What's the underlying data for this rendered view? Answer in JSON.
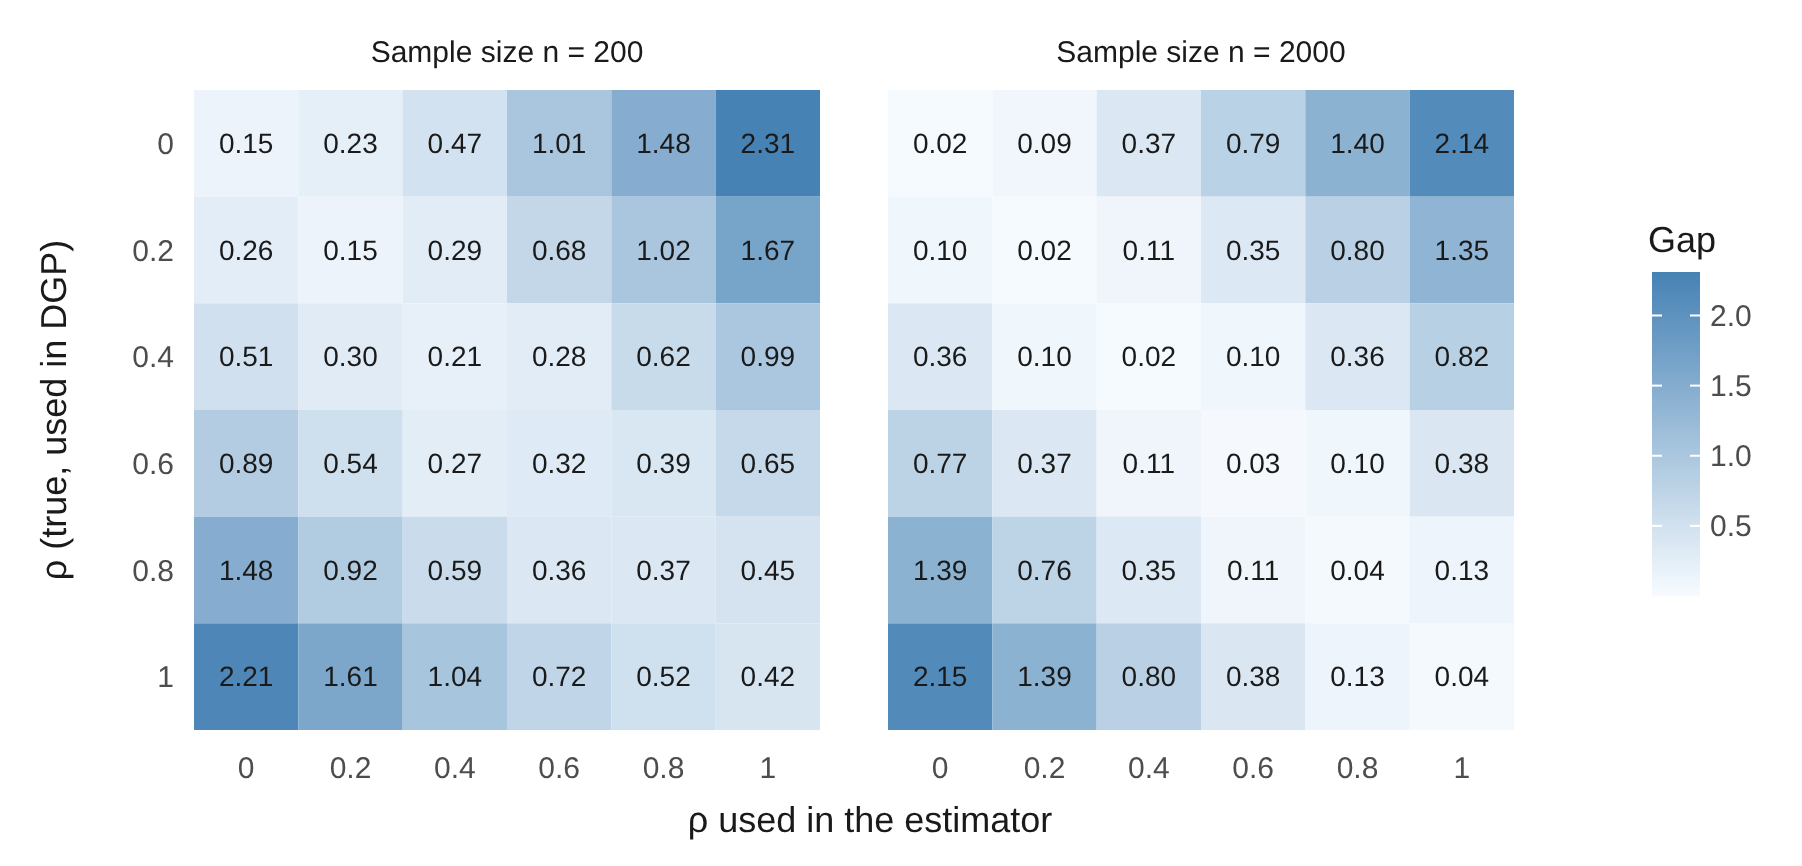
{
  "chart_data": [
    {
      "type": "heatmap",
      "title": "Sample size n = 200",
      "xlabel": "ρ  used in the estimator",
      "ylabel": "ρ  (true, used in DGP)",
      "clabel": "Gap",
      "categories": [
        "0",
        "0.2",
        "0.4",
        "0.6",
        "0.8",
        "1"
      ],
      "y_categories": [
        "0",
        "0.2",
        "0.4",
        "0.6",
        "0.8",
        "1"
      ],
      "cells": [
        [
          0.15,
          0.23,
          0.47,
          1.01,
          1.48,
          2.31
        ],
        [
          0.26,
          0.15,
          0.29,
          0.68,
          1.02,
          1.67
        ],
        [
          0.51,
          0.3,
          0.21,
          0.28,
          0.62,
          0.99
        ],
        [
          0.89,
          0.54,
          0.27,
          0.32,
          0.39,
          0.65
        ],
        [
          1.48,
          0.92,
          0.59,
          0.36,
          0.37,
          0.45
        ],
        [
          2.21,
          1.61,
          1.04,
          0.72,
          0.52,
          0.42
        ]
      ],
      "cell_labels": [
        [
          "0.15",
          "0.23",
          "0.47",
          "1.01",
          "1.48",
          "2.31"
        ],
        [
          "0.26",
          "0.15",
          "0.29",
          "0.68",
          "1.02",
          "1.67"
        ],
        [
          "0.51",
          "0.30",
          "0.21",
          "0.28",
          "0.62",
          "0.99"
        ],
        [
          "0.89",
          "0.54",
          "0.27",
          "0.32",
          "0.39",
          "0.65"
        ],
        [
          "1.48",
          "0.92",
          "0.59",
          "0.36",
          "0.37",
          "0.45"
        ],
        [
          "2.21",
          "1.61",
          "1.04",
          "0.72",
          "0.52",
          "0.42"
        ]
      ],
      "clim": [
        0,
        2.31
      ],
      "cticks": [
        0.5,
        {
          "value": 1,
          "label": "1.0"
        },
        1.5,
        {
          "value": 2,
          "label": "2.0"
        }
      ]
    },
    {
      "type": "heatmap",
      "title": "Sample size n = 2000",
      "tick_labels": "x",
      "categories": [
        "0",
        "0.2",
        "0.4",
        "0.6",
        "0.8",
        "1"
      ],
      "y_categories": [
        "0",
        "0.2",
        "0.4",
        "0.6",
        "0.8",
        "1"
      ],
      "cells": [
        [
          0.02,
          0.09,
          0.37,
          0.79,
          1.4,
          2.14
        ],
        [
          0.1,
          0.02,
          0.11,
          0.35,
          0.8,
          1.35
        ],
        [
          0.36,
          0.1,
          0.02,
          0.1,
          0.36,
          0.82
        ],
        [
          0.77,
          0.37,
          0.11,
          0.03,
          0.1,
          0.38
        ],
        [
          1.39,
          0.76,
          0.35,
          0.11,
          0.04,
          0.13
        ],
        [
          2.15,
          1.39,
          0.8,
          0.38,
          0.13,
          0.04
        ]
      ],
      "cell_labels": [
        [
          "0.02",
          "0.09",
          "0.37",
          "0.79",
          "1.40",
          "2.14"
        ],
        [
          "0.10",
          "0.02",
          "0.11",
          "0.35",
          "0.80",
          "1.35"
        ],
        [
          "0.36",
          "0.10",
          "0.02",
          "0.10",
          "0.36",
          "0.82"
        ],
        [
          "0.77",
          "0.37",
          "0.11",
          "0.03",
          "0.10",
          "0.38"
        ],
        [
          "1.39",
          "0.76",
          "0.35",
          "0.11",
          "0.04",
          "0.13"
        ],
        [
          "2.15",
          "1.39",
          "0.80",
          "0.38",
          "0.13",
          "0.04"
        ]
      ]
    }
  ]
}
